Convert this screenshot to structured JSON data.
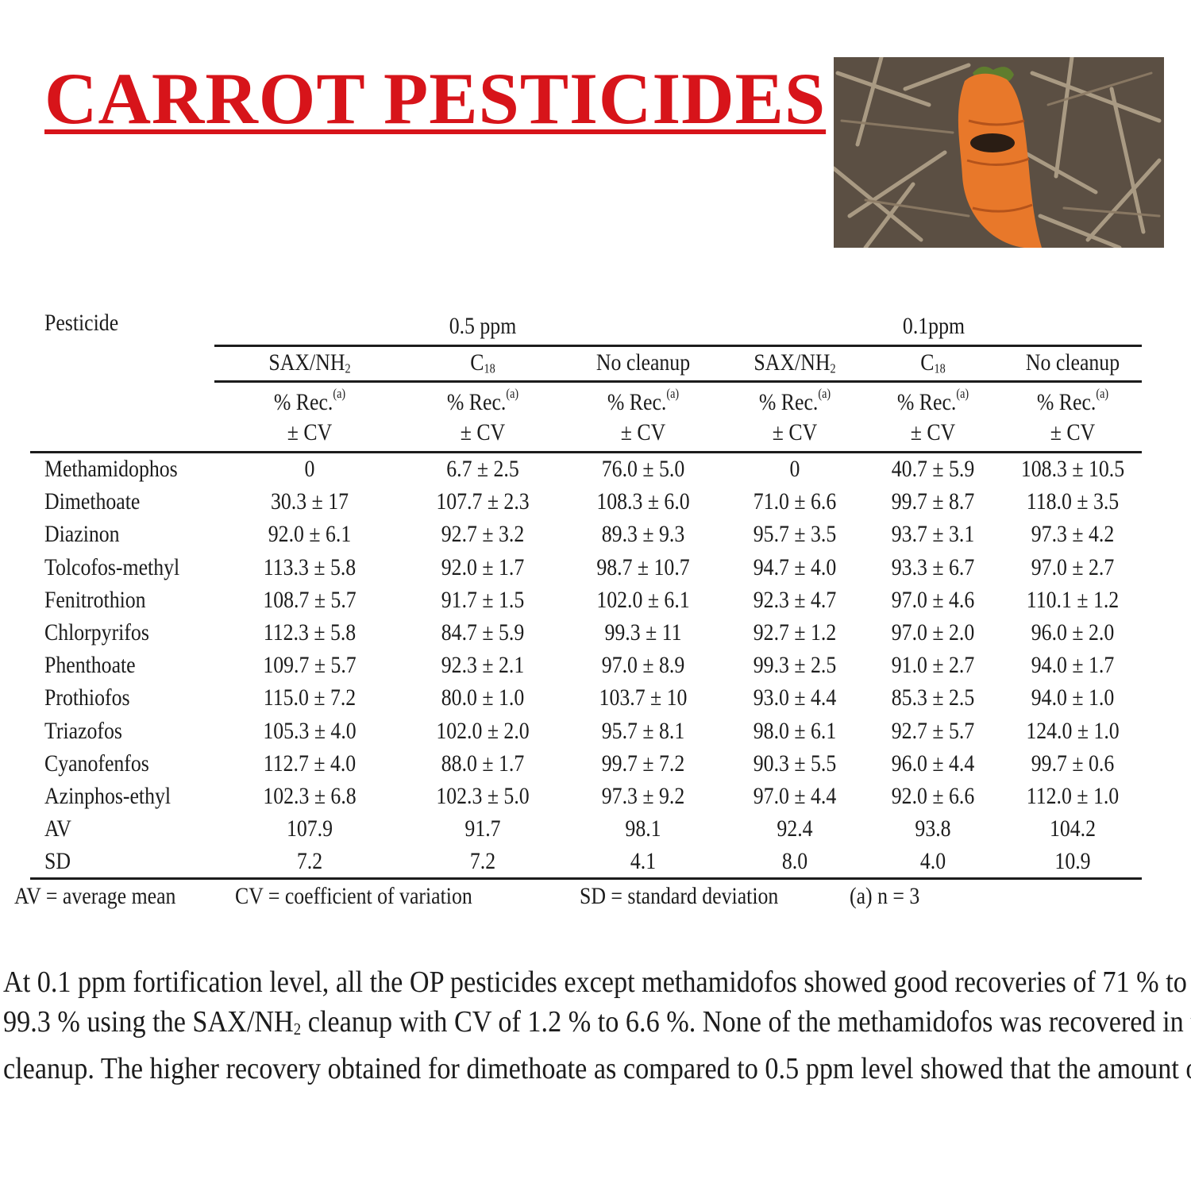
{
  "title": "CARROT PESTICIDES",
  "photo": {
    "alt_icon": "carrot-photo",
    "colors": {
      "carrot": "#e8782a",
      "soil": "#5b4f43",
      "straw": "#b7a88f"
    }
  },
  "table": {
    "header_pesticide": "Pesticide",
    "groups": [
      "0.5 ppm",
      "0.1ppm"
    ],
    "methods": [
      {
        "base": "SAX/NH",
        "sub": "2"
      },
      {
        "base": "C",
        "sub": "18"
      },
      {
        "base": "No cleanup",
        "sub": ""
      },
      {
        "base": "SAX/NH",
        "sub": "2"
      },
      {
        "base": "C",
        "sub": "18"
      },
      {
        "base": "No cleanup",
        "sub": ""
      }
    ],
    "rec_label": "% Rec.",
    "rec_sup": "(a)",
    "cv_label": "± CV",
    "rows": [
      {
        "name": "Methamidophos",
        "values": [
          "0",
          "6.7 ± 2.5",
          "76.0 ± 5.0",
          "0",
          "40.7 ± 5.9",
          "108.3 ± 10.5"
        ]
      },
      {
        "name": "Dimethoate",
        "values": [
          "30.3 ± 17",
          "107.7 ± 2.3",
          "108.3 ± 6.0",
          "71.0 ± 6.6",
          "99.7 ± 8.7",
          "118.0 ± 3.5"
        ]
      },
      {
        "name": "Diazinon",
        "values": [
          "92.0 ± 6.1",
          "92.7 ± 3.2",
          "89.3 ± 9.3",
          "95.7 ± 3.5",
          "93.7 ± 3.1",
          "97.3 ± 4.2"
        ]
      },
      {
        "name": "Tolcofos-methyl",
        "values": [
          "113.3 ± 5.8",
          "92.0 ± 1.7",
          "98.7 ± 10.7",
          "94.7 ± 4.0",
          "93.3 ± 6.7",
          "97.0 ± 2.7"
        ]
      },
      {
        "name": "Fenitrothion",
        "values": [
          "108.7 ± 5.7",
          "91.7 ± 1.5",
          "102.0 ± 6.1",
          "92.3 ± 4.7",
          "97.0 ± 4.6",
          "110.1 ± 1.2"
        ]
      },
      {
        "name": "Chlorpyrifos",
        "values": [
          "112.3 ± 5.8",
          "84.7 ± 5.9",
          "99.3 ± 11",
          "92.7 ± 1.2",
          "97.0 ± 2.0",
          "96.0 ± 2.0"
        ]
      },
      {
        "name": "Phenthoate",
        "values": [
          "109.7 ± 5.7",
          "92.3 ± 2.1",
          "97.0 ± 8.9",
          "99.3 ± 2.5",
          "91.0 ± 2.7",
          "94.0 ± 1.7"
        ]
      },
      {
        "name": "Prothiofos",
        "values": [
          "115.0 ± 7.2",
          "80.0 ± 1.0",
          "103.7 ± 10",
          "93.0 ± 4.4",
          "85.3 ± 2.5",
          "94.0 ± 1.0"
        ]
      },
      {
        "name": "Triazofos",
        "values": [
          "105.3 ± 4.0",
          "102.0 ± 2.0",
          "95.7 ± 8.1",
          "98.0 ± 6.1",
          "92.7 ± 5.7",
          "124.0 ± 1.0"
        ]
      },
      {
        "name": "Cyanofenfos",
        "values": [
          "112.7 ± 4.0",
          "88.0 ± 1.7",
          "99.7 ± 7.2",
          "90.3 ± 5.5",
          "96.0 ± 4.4",
          "99.7 ± 0.6"
        ]
      },
      {
        "name": "Azinphos-ethyl",
        "values": [
          "102.3 ± 6.8",
          "102.3 ± 5.0",
          "97.3 ± 9.2",
          "97.0 ± 4.4",
          "92.0 ± 6.6",
          "112.0 ± 1.0"
        ]
      },
      {
        "name": "AV",
        "values": [
          "107.9",
          "91.7",
          "98.1",
          "92.4",
          "93.8",
          "104.2"
        ]
      },
      {
        "name": "SD",
        "values": [
          "7.2",
          "7.2",
          "4.1",
          "8.0",
          "4.0",
          "10.9"
        ]
      }
    ],
    "footnotes": [
      "AV = average mean",
      "CV = coefficient of variation",
      "SD = standard deviation",
      "(a) n = 3"
    ]
  },
  "paragraph": {
    "line1": "At 0.1 ppm fortification level, all the OP pesticides except methamidofos showed good recoveries of 71 % to",
    "line2_a": "99.3 % using the SAX/NH",
    "line2_sub": "2",
    "line2_b": " cleanup with CV of 1.2 % to 6.6 %. None of the methamidofos was recovered in this",
    "line3": "cleanup. The higher recovery obtained for dimethoate as compared to 0.5 ppm level showed that the amount of"
  }
}
